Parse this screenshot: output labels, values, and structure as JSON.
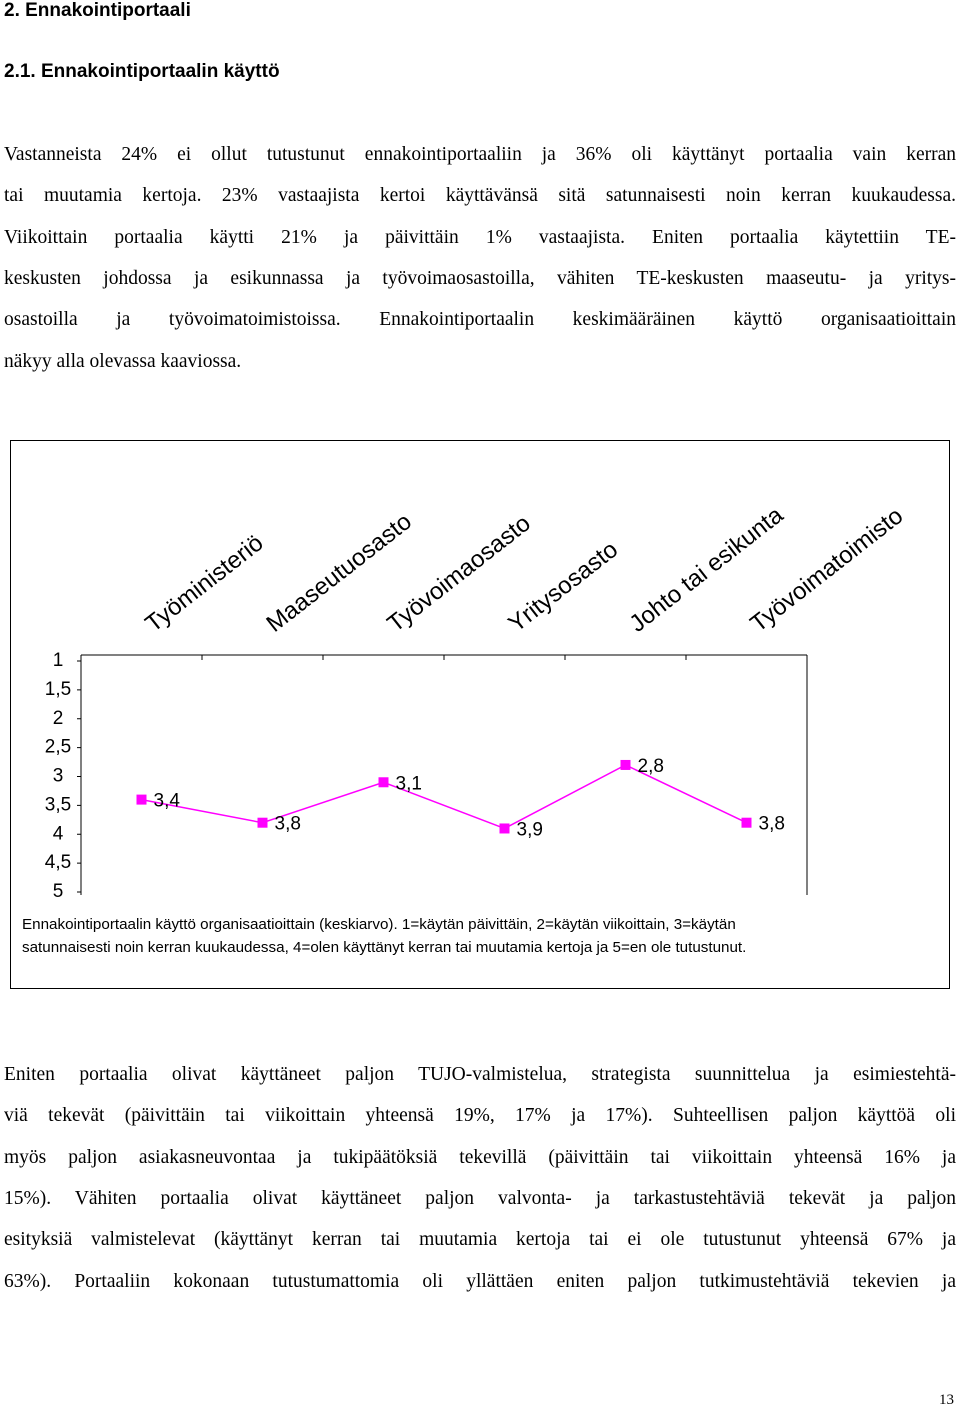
{
  "header": {
    "title": "2. Ennakointiportaali",
    "subtitle": "2.1. Ennakointiportaalin käyttö"
  },
  "paragraph1": [
    "Vastanneista 24% ei ollut tutustunut ennakointiportaaliin ja 36% oli käyttänyt portaalia vain kerran",
    "tai muutamia kertoja. 23% vastaajista kertoi käyttävänsä sitä satunnaisesti noin kerran kuukaudessa.",
    "Viikoittain portaalia käytti 21% ja päivittäin 1% vastaajista. Eniten portaalia käytettiin TE-",
    "keskusten johdossa ja esikunnassa ja työvoimaosastoilla, vähiten TE-keskusten maaseutu- ja yritys-",
    "osastoilla ja työvoimatoimistoissa. Ennakointiportaalin keskimääräinen käyttö organisaatioittain",
    "näkyy alla olevassa kaaviossa."
  ],
  "chart_data": {
    "type": "line",
    "categories": [
      "Työministeriö",
      "Maaseutuosasto",
      "Työvoimaosasto",
      "Yritysosasto",
      "Johto tai esikunta",
      "Työvoimatoimisto"
    ],
    "series": [
      {
        "name": "Keskiarvo",
        "color": "#ff00ff",
        "values": [
          3.4,
          3.8,
          3.1,
          3.9,
          2.8,
          3.8
        ],
        "value_labels": [
          "3,4",
          "3,8",
          "3,1",
          "3,9",
          "2,8",
          "3,8"
        ]
      }
    ],
    "ylim": [
      1,
      5
    ],
    "y_inverted": true,
    "yticks": [
      1,
      {
        "value": 1.5,
        "label": "1,5"
      },
      2,
      {
        "value": 2.5,
        "label": "2,5"
      },
      3,
      {
        "value": 3.5,
        "label": "3,5"
      },
      4,
      {
        "value": 4.5,
        "label": "4,5"
      },
      5
    ],
    "caption": [
      "Ennakointiportaalin käyttö organisaatioittain (keskiarvo). 1=käytän päivittäin, 2=käytän viikoittain, 3=käytän",
      "satunnaisesti noin kerran kuukaudessa, 4=olen käyttänyt kerran tai muutamia kertoja ja 5=en ole tutustunut."
    ]
  },
  "paragraph2": [
    "Eniten portaalia olivat käyttäneet paljon TUJO-valmistelua, strategista suunnittelua ja esimiestehtä-",
    "viä tekevät (päivittäin tai viikoittain yhteensä 19%, 17% ja 17%). Suhteellisen paljon käyttöä oli",
    "myös paljon asiakasneuvontaa ja tukipäätöksiä tekevillä (päivittäin tai viikoittain yhteensä 16% ja",
    "15%). Vähiten portaalia olivat käyttäneet paljon valvonta- ja tarkastustehtäviä tekevät ja paljon",
    "esityksiä valmistelevat (käyttänyt kerran tai muutamia kertoja tai ei ole tutustunut yhteensä 67% ja",
    "63%). Portaaliin kokonaan tutustumattomia oli yllättäen eniten paljon tutkimustehtäviä tekevien ja"
  ],
  "page_number": "13"
}
